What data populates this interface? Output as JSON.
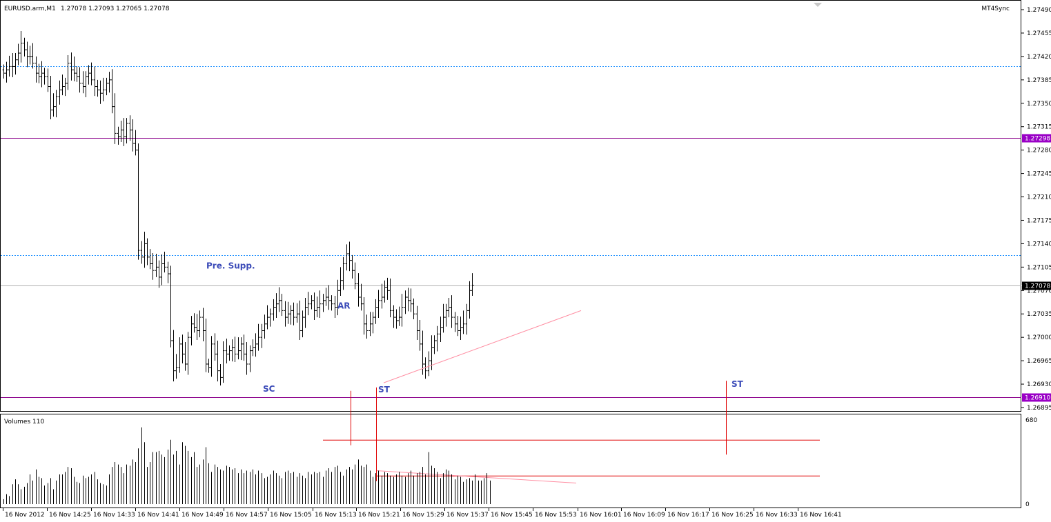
{
  "window": {
    "symbol_label": "EURUSD.arm,M1",
    "ohlc_label": "1.27078 1.27093 1.27065 1.27078",
    "plugin_label": "MT4Sync",
    "volumes_label": "Volumes 110"
  },
  "colors": {
    "bars": "#000000",
    "support_line": "#8b008b",
    "support_tag_bg": "#9a00c6",
    "dashed_line": "#1e90ff",
    "bid_line": "#b0b0b0",
    "bid_tag_bg": "#000000",
    "annotation_text": "#3b4bb8",
    "red_line": "#e00000",
    "pink_line": "#ff8fa3"
  },
  "chart_data": [
    {
      "type": "ohlc",
      "title": "EURUSD.arm,M1",
      "x": [
        "16 Nov 2012",
        "16 Nov 14:25",
        "16 Nov 14:33",
        "16 Nov 14:41",
        "16 Nov 14:49",
        "16 Nov 14:57",
        "16 Nov 15:05",
        "16 Nov 15:13",
        "16 Nov 15:21",
        "16 Nov 15:29",
        "16 Nov 15:37",
        "16 Nov 15:45",
        "16 Nov 15:53",
        "16 Nov 16:01",
        "16 Nov 16:09",
        "16 Nov 16:17",
        "16 Nov 16:25",
        "16 Nov 16:33",
        "16 Nov 16:41"
      ],
      "y_ticks": [
        "1.27490",
        "1.27455",
        "1.27420",
        "1.27385",
        "1.27350",
        "1.27315",
        "1.27280",
        "1.27245",
        "1.27210",
        "1.27175",
        "1.27140",
        "1.27105",
        "1.27070",
        "1.27035",
        "1.27000",
        "1.26965",
        "1.26930",
        "1.26895"
      ],
      "ylim": [
        1.26885,
        1.27495
      ],
      "close_path": [
        1.27395,
        1.274,
        1.27405,
        1.27405,
        1.27415,
        1.27425,
        1.2744,
        1.2743,
        1.2742,
        1.2742,
        1.2741,
        1.27395,
        1.2739,
        1.27395,
        1.2739,
        1.27375,
        1.2734,
        1.27345,
        1.2736,
        1.2737,
        1.27375,
        1.2738,
        1.2741,
        1.274,
        1.27395,
        1.2739,
        1.2738,
        1.27375,
        1.2739,
        1.27395,
        1.27385,
        1.27375,
        1.2737,
        1.27365,
        1.2737,
        1.2738,
        1.27385,
        1.27345,
        1.27305,
        1.273,
        1.2731,
        1.273,
        1.2732,
        1.2731,
        1.2729,
        1.2728,
        1.2713,
        1.2712,
        1.2714,
        1.2712,
        1.2711,
        1.271,
        1.27105,
        1.2709,
        1.2711,
        1.27105,
        1.27095,
        1.26995,
        1.2695,
        1.26955,
        1.2699,
        1.26975,
        1.2696,
        1.27,
        1.2702,
        1.27015,
        1.2701,
        1.2703,
        1.2701,
        1.2696,
        1.26955,
        1.2699,
        1.26975,
        1.2695,
        1.2694,
        1.2698,
        1.26975,
        1.2698,
        1.26985,
        1.26975,
        1.2698,
        1.2699,
        1.26975,
        1.2696,
        1.2698,
        1.26985,
        1.2699,
        1.27,
        1.2701,
        1.2702,
        1.2703,
        1.27035,
        1.27045,
        1.2705,
        1.27055,
        1.2704,
        1.2703,
        1.27035,
        1.2704,
        1.2703,
        1.27035,
        1.2701,
        1.2703,
        1.27045,
        1.2705,
        1.27055,
        1.2704,
        1.27045,
        1.2705,
        1.27055,
        1.2706,
        1.27055,
        1.2705,
        1.27045,
        1.2707,
        1.27085,
        1.2711,
        1.27125,
        1.27115,
        1.271,
        1.2708,
        1.2706,
        1.2705,
        1.2702,
        1.2701,
        1.2702,
        1.2703,
        1.27045,
        1.27055,
        1.2706,
        1.27075,
        1.2707,
        1.2704,
        1.2703,
        1.27025,
        1.2703,
        1.27045,
        1.2706,
        1.27055,
        1.2705,
        1.27035,
        1.2701,
        1.2699,
        1.2696,
        1.2695,
        1.26965,
        1.26985,
        1.26995,
        1.27005,
        1.27015,
        1.2703,
        1.2704,
        1.27045,
        1.2703,
        1.2702,
        1.2701,
        1.27015,
        1.2702,
        1.2704,
        1.2707,
        1.27078
      ],
      "horizontal_levels": [
        {
          "price": 1.27405,
          "style": "dashed"
        },
        {
          "price": 1.27298,
          "style": "solid",
          "tag": "1.27298"
        },
        {
          "price": 1.27123,
          "style": "dashed"
        },
        {
          "price": 1.27078,
          "style": "bid",
          "tag": "1.27078"
        },
        {
          "price": 1.2691,
          "style": "solid",
          "tag": "1.26910"
        }
      ],
      "trendline": {
        "from": [
          "16 Nov 15:21",
          1.26932
        ],
        "to": [
          "16 Nov 15:53",
          1.2704
        ]
      },
      "annotations": [
        {
          "text": "Pre. Supp.",
          "x": "16 Nov 14:57",
          "price": 1.27107
        },
        {
          "text": "AR",
          "x": "16 Nov 15:13",
          "price": 1.27047
        },
        {
          "text": "SC",
          "x": "16 Nov 15:05",
          "price": 1.26923
        },
        {
          "text": "ST",
          "x": "16 Nov 15:21",
          "price": 1.26922
        },
        {
          "text": "ST",
          "x": "16 Nov 16:25",
          "price": 1.2693
        }
      ]
    },
    {
      "type": "bar",
      "title": "Volumes 110",
      "y_ticks": [
        "680",
        "0"
      ],
      "ylim": [
        0,
        680
      ],
      "values": [
        40,
        80,
        65,
        160,
        200,
        160,
        120,
        140,
        170,
        240,
        190,
        280,
        220,
        210,
        150,
        170,
        210,
        120,
        190,
        240,
        240,
        260,
        300,
        290,
        220,
        180,
        170,
        230,
        210,
        220,
        240,
        260,
        200,
        170,
        160,
        150,
        240,
        300,
        340,
        320,
        300,
        250,
        320,
        310,
        360,
        340,
        450,
        620,
        500,
        300,
        340,
        420,
        420,
        430,
        400,
        380,
        440,
        520,
        400,
        430,
        320,
        500,
        470,
        430,
        380,
        420,
        300,
        320,
        360,
        460,
        330,
        260,
        320,
        300,
        280,
        270,
        310,
        300,
        280,
        290,
        250,
        280,
        250,
        270,
        260,
        280,
        240,
        270,
        250,
        210,
        220,
        240,
        270,
        250,
        230,
        210,
        260,
        270,
        250,
        260,
        220,
        250,
        230,
        210,
        260,
        240,
        260,
        250,
        260,
        220,
        270,
        290,
        260,
        300,
        310,
        260,
        230,
        280,
        300,
        280,
        320,
        360,
        310,
        300,
        320,
        270,
        220,
        250,
        270,
        230,
        260,
        250,
        230,
        220,
        240,
        260,
        230,
        220,
        250,
        270,
        230,
        250,
        260,
        300,
        240,
        420,
        310,
        290,
        260,
        210,
        250,
        280,
        270,
        240,
        200,
        230,
        220,
        180,
        200,
        210,
        190,
        240,
        190,
        190,
        210,
        250,
        190
      ]
    }
  ],
  "volume_guides": {
    "upper_red": 520,
    "lower_red": 230,
    "pink_from": 270,
    "pink_to": 170
  },
  "x_axis_labels": [
    "16 Nov 2012",
    "16 Nov 14:25",
    "16 Nov 14:33",
    "16 Nov 14:41",
    "16 Nov 14:49",
    "16 Nov 14:57",
    "16 Nov 15:05",
    "16 Nov 15:13",
    "16 Nov 15:21",
    "16 Nov 15:29",
    "16 Nov 15:37",
    "16 Nov 15:45",
    "16 Nov 15:53",
    "16 Nov 16:01",
    "16 Nov 16:09",
    "16 Nov 16:17",
    "16 Nov 16:25",
    "16 Nov 16:33",
    "16 Nov 16:41"
  ]
}
